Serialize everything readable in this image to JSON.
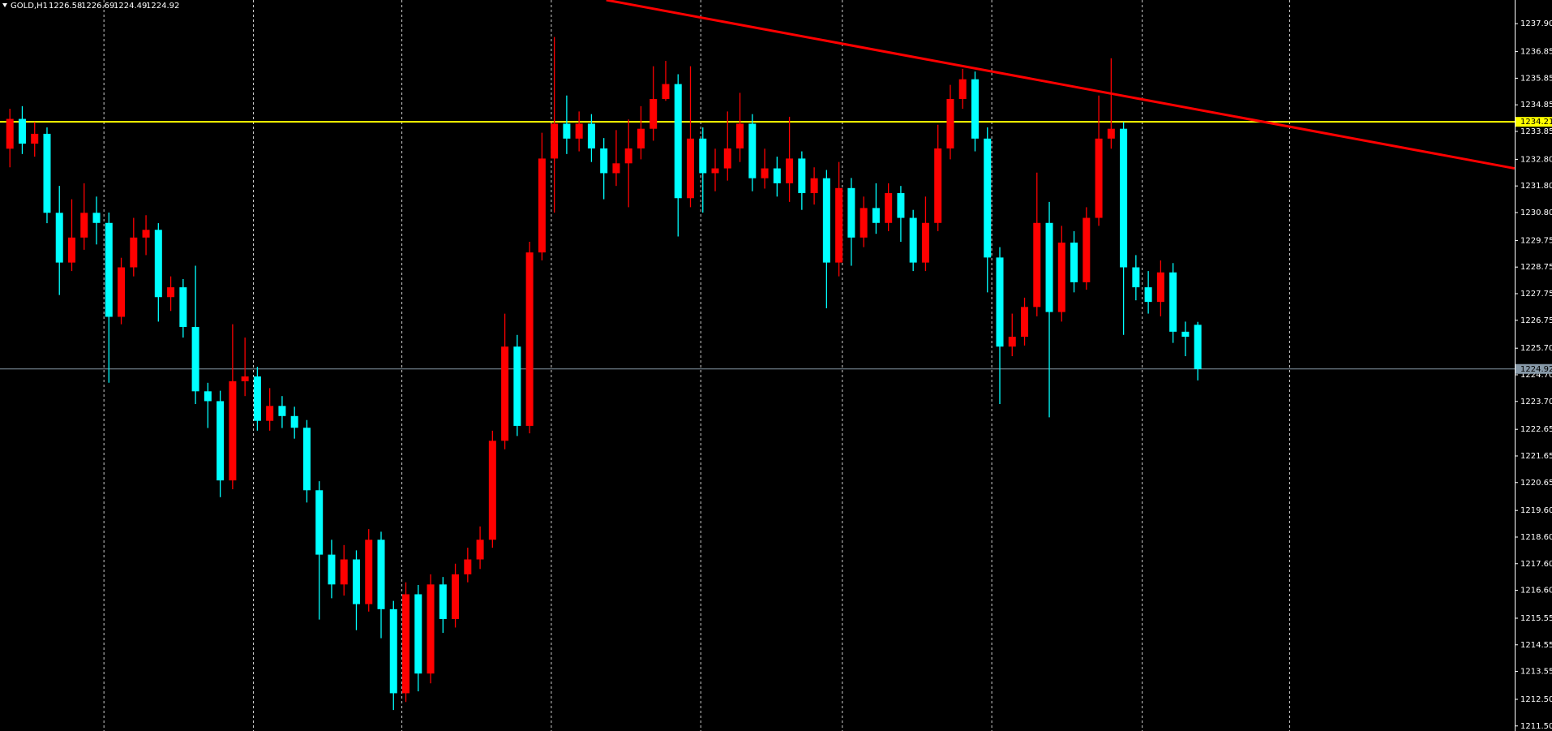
{
  "chart_data": {
    "type": "candlestick",
    "title": "GOLD,H1",
    "up_color": "#ff0000",
    "down_color": "#00ffff",
    "open": [
      1233.2,
      1234.32,
      1233.39,
      1233.76,
      1230.79,
      1228.92,
      1229.86,
      1230.79,
      1230.41,
      1226.88,
      1228.74,
      1229.86,
      1230.15,
      1227.62,
      1227.99,
      1226.5,
      1224.08,
      1223.71,
      1220.73,
      1224.46,
      1224.64,
      1222.97,
      1223.53,
      1223.15,
      1222.71,
      1220.36,
      1217.94,
      1216.82,
      1217.76,
      1216.08,
      1218.5,
      1215.89,
      1212.73,
      1216.45,
      1213.47,
      1216.82,
      1215.52,
      1217.2,
      1217.76,
      1218.5,
      1222.22,
      1225.76,
      1222.78,
      1229.3,
      1232.83,
      1234.14,
      1233.58,
      1234.14,
      1233.21,
      1232.28,
      1232.65,
      1233.21,
      1233.95,
      1235.07,
      1235.63,
      1231.34,
      1233.58,
      1232.28,
      1232.46,
      1233.21,
      1234.14,
      1232.09,
      1232.46,
      1231.9,
      1232.83,
      1231.53,
      1232.09,
      1228.92,
      1231.72,
      1229.86,
      1230.97,
      1230.41,
      1231.53,
      1230.6,
      1228.92,
      1230.41,
      1233.21,
      1235.07,
      1235.81,
      1233.58,
      1229.11,
      1225.76,
      1226.13,
      1227.25,
      1230.41,
      1227.06,
      1229.67,
      1228.18,
      1230.6,
      1233.58,
      1233.95,
      1228.74,
      1227.99,
      1227.44,
      1228.55,
      1226.32,
      1226.58
    ],
    "high": [
      1234.7,
      1234.8,
      1234.2,
      1234.0,
      1231.8,
      1231.3,
      1231.9,
      1231.4,
      1230.8,
      1229.1,
      1230.6,
      1230.7,
      1230.4,
      1228.4,
      1228.3,
      1228.8,
      1224.4,
      1224.1,
      1226.6,
      1226.1,
      1225.0,
      1224.2,
      1223.9,
      1223.5,
      1223.0,
      1220.7,
      1218.5,
      1218.3,
      1218.1,
      1218.9,
      1218.8,
      1216.2,
      1216.9,
      1216.8,
      1217.2,
      1217.1,
      1217.6,
      1218.2,
      1219.0,
      1222.6,
      1227.0,
      1226.2,
      1229.7,
      1233.8,
      1237.4,
      1235.2,
      1234.6,
      1234.5,
      1233.6,
      1233.9,
      1234.3,
      1234.8,
      1236.3,
      1236.5,
      1236.0,
      1236.3,
      1234.0,
      1233.2,
      1234.6,
      1235.3,
      1234.5,
      1233.2,
      1232.9,
      1234.4,
      1233.1,
      1232.5,
      1232.4,
      1232.7,
      1232.1,
      1231.4,
      1231.9,
      1231.9,
      1231.8,
      1230.9,
      1231.4,
      1234.1,
      1235.6,
      1236.2,
      1236.1,
      1234.0,
      1229.5,
      1227.0,
      1227.6,
      1232.3,
      1231.2,
      1230.3,
      1230.1,
      1231.0,
      1235.2,
      1236.6,
      1234.2,
      1229.2,
      1228.6,
      1229.0,
      1228.9,
      1226.7,
      1226.69
    ],
    "low": [
      1232.5,
      1233.0,
      1232.9,
      1230.4,
      1227.7,
      1228.6,
      1229.4,
      1229.6,
      1224.4,
      1226.6,
      1228.4,
      1229.2,
      1226.7,
      1227.1,
      1226.1,
      1223.6,
      1222.7,
      1220.1,
      1220.4,
      1223.9,
      1222.6,
      1222.6,
      1222.7,
      1222.3,
      1219.9,
      1215.5,
      1216.3,
      1216.4,
      1215.1,
      1215.8,
      1214.8,
      1212.1,
      1212.4,
      1212.8,
      1213.1,
      1215.0,
      1215.2,
      1216.9,
      1217.4,
      1218.2,
      1221.9,
      1222.4,
      1222.5,
      1229.0,
      1230.8,
      1233.0,
      1233.1,
      1232.7,
      1231.3,
      1231.8,
      1231.0,
      1232.8,
      1233.5,
      1235.0,
      1229.9,
      1231.0,
      1230.8,
      1231.6,
      1232.0,
      1232.7,
      1231.6,
      1231.7,
      1231.4,
      1231.2,
      1230.9,
      1231.1,
      1227.2,
      1228.4,
      1228.8,
      1229.5,
      1230.0,
      1230.1,
      1229.7,
      1228.6,
      1228.6,
      1230.1,
      1232.8,
      1234.7,
      1233.1,
      1227.8,
      1223.6,
      1225.4,
      1225.8,
      1226.9,
      1223.1,
      1226.7,
      1227.8,
      1227.9,
      1230.3,
      1233.2,
      1226.2,
      1227.5,
      1227.0,
      1226.9,
      1225.9,
      1225.4,
      1224.49
    ],
    "close": [
      1234.32,
      1233.39,
      1233.76,
      1230.79,
      1228.92,
      1229.86,
      1230.79,
      1230.41,
      1226.88,
      1228.74,
      1229.86,
      1230.15,
      1227.62,
      1227.99,
      1226.5,
      1224.08,
      1223.71,
      1220.73,
      1224.46,
      1224.64,
      1222.97,
      1223.53,
      1223.15,
      1222.71,
      1220.36,
      1217.94,
      1216.82,
      1217.76,
      1216.08,
      1218.5,
      1215.89,
      1212.73,
      1216.45,
      1213.47,
      1216.82,
      1215.52,
      1217.2,
      1217.76,
      1218.5,
      1222.22,
      1225.76,
      1222.78,
      1229.3,
      1232.83,
      1234.14,
      1233.58,
      1234.14,
      1233.21,
      1232.28,
      1232.65,
      1233.21,
      1233.95,
      1235.07,
      1235.63,
      1231.34,
      1233.58,
      1232.28,
      1232.46,
      1233.21,
      1234.14,
      1232.09,
      1232.46,
      1231.9,
      1232.83,
      1231.53,
      1232.09,
      1228.92,
      1231.72,
      1229.86,
      1230.97,
      1230.41,
      1231.53,
      1230.6,
      1228.92,
      1230.41,
      1233.21,
      1235.07,
      1235.81,
      1233.58,
      1229.11,
      1225.76,
      1226.13,
      1227.25,
      1230.41,
      1227.06,
      1229.67,
      1228.18,
      1230.6,
      1233.58,
      1233.95,
      1228.74,
      1227.99,
      1227.44,
      1228.55,
      1226.32,
      1226.13,
      1224.92
    ],
    "ylim": [
      1211.31,
      1238.79
    ],
    "yticks": [
      {
        "value": 1237.9,
        "label": "1237.90"
      },
      1236.85,
      1235.85,
      1234.85,
      1233.85,
      {
        "value": 1232.8,
        "label": "1232.80"
      },
      {
        "value": 1231.8,
        "label": "1231.80"
      },
      {
        "value": 1230.8,
        "label": "1230.80"
      },
      1229.75,
      1228.75,
      1227.75,
      1226.75,
      {
        "value": 1225.7,
        "label": "1225.70"
      },
      {
        "value": 1224.7,
        "label": "1224.70"
      },
      {
        "value": 1223.7,
        "label": "1223.70"
      },
      1222.65,
      1221.65,
      1220.65,
      {
        "value": 1219.6,
        "label": "1219.60"
      },
      {
        "value": 1218.6,
        "label": "1218.60"
      },
      {
        "value": 1217.6,
        "label": "1217.60"
      },
      {
        "value": 1216.6,
        "label": "1216.60"
      },
      1215.55,
      1214.55,
      1213.55,
      {
        "value": 1212.5,
        "label": "1212.50"
      },
      {
        "value": 1211.5,
        "label": "1211.50"
      }
    ],
    "hlines": [
      {
        "value": 1234.21,
        "color": "#ffff00"
      },
      {
        "value": 1224.92,
        "color": "#8799a8"
      }
    ],
    "trendline": {
      "color": "#ff0000",
      "x": [
        48.2,
        121.6
      ],
      "y": [
        1238.79,
        1232.46
      ]
    }
  }
}
